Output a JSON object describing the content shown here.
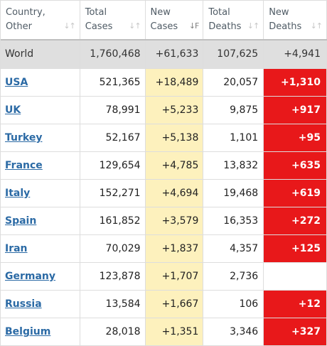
{
  "headers": [
    {
      "line1": "Country,",
      "line2": "Other",
      "sort": "↓↑",
      "active": false
    },
    {
      "line1": "Total",
      "line2": "Cases",
      "sort": "↓↑",
      "active": false
    },
    {
      "line1": "New",
      "line2": "Cases",
      "sort": "↓F",
      "active": true
    },
    {
      "line1": "Total",
      "line2": "Deaths",
      "sort": "↓↑",
      "active": false
    },
    {
      "line1": "New",
      "line2": "Deaths",
      "sort": "↓↑",
      "active": false
    }
  ],
  "world": {
    "country": "World",
    "total_cases": "1,760,468",
    "new_cases": "+61,633",
    "total_deaths": "107,625",
    "new_deaths": "+4,941"
  },
  "rows": [
    {
      "country": "USA",
      "total_cases": "521,365",
      "new_cases": "+18,489",
      "total_deaths": "20,057",
      "new_deaths": "+1,310"
    },
    {
      "country": "UK",
      "total_cases": "78,991",
      "new_cases": "+5,233",
      "total_deaths": "9,875",
      "new_deaths": "+917"
    },
    {
      "country": "Turkey",
      "total_cases": "52,167",
      "new_cases": "+5,138",
      "total_deaths": "1,101",
      "new_deaths": "+95"
    },
    {
      "country": "France",
      "total_cases": "129,654",
      "new_cases": "+4,785",
      "total_deaths": "13,832",
      "new_deaths": "+635"
    },
    {
      "country": "Italy",
      "total_cases": "152,271",
      "new_cases": "+4,694",
      "total_deaths": "19,468",
      "new_deaths": "+619"
    },
    {
      "country": "Spain",
      "total_cases": "161,852",
      "new_cases": "+3,579",
      "total_deaths": "16,353",
      "new_deaths": "+272"
    },
    {
      "country": "Iran",
      "total_cases": "70,029",
      "new_cases": "+1,837",
      "total_deaths": "4,357",
      "new_deaths": "+125"
    },
    {
      "country": "Germany",
      "total_cases": "123,878",
      "new_cases": "+1,707",
      "total_deaths": "2,736",
      "new_deaths": ""
    },
    {
      "country": "Russia",
      "total_cases": "13,584",
      "new_cases": "+1,667",
      "total_deaths": "106",
      "new_deaths": "+12"
    },
    {
      "country": "Belgium",
      "total_cases": "28,018",
      "new_cases": "+1,351",
      "total_deaths": "3,346",
      "new_deaths": "+327"
    }
  ],
  "colors": {
    "new_cases_bg": "#fdf1bd",
    "new_deaths_bg": "#e8181a",
    "link": "#2b6aa5",
    "world_bg": "#dfdfdf"
  }
}
